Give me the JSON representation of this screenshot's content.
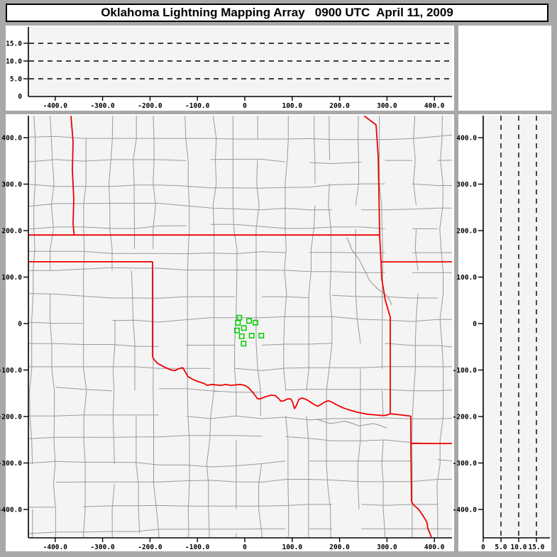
{
  "window_title": "Oklahoma Lightning Mapping Array   0900 UTC  April 11, 2009",
  "colors": {
    "frame": "#a8a8a8",
    "panel_bg": "#ffffff",
    "plot_bg": "#f4f4f4",
    "county_line": "#9a9a9a",
    "state_border": "#ee0000",
    "river": "#9a9a9a",
    "station": "#00cc00",
    "axis": "#000000",
    "gridline": "#000000",
    "title_text": "#000000"
  },
  "chart_data": [
    {
      "id": "alt_ew",
      "type": "scatter",
      "role": "altitude-vs-east-west-distance",
      "xlim": [
        -456,
        437
      ],
      "ylim": [
        0,
        20
      ],
      "x_tick_values": [
        -400,
        -300,
        -200,
        -100,
        0,
        100,
        200,
        300,
        400
      ],
      "x_tick_labels": [
        "-400.0",
        "-300.0",
        "-200.0",
        "-100.0",
        "0",
        "100.0",
        "200.0",
        "300.0",
        "400.0"
      ],
      "y_gridlines": [
        5,
        10,
        15
      ],
      "y_tick_values": [
        5,
        10,
        15
      ],
      "y_tick_labels": [
        "5.0",
        "10.0",
        "15.0"
      ],
      "y_zero_label": "0",
      "grid_style": "dashed",
      "points": []
    },
    {
      "id": "map",
      "type": "scatter",
      "role": "plan-view-map",
      "xlim": [
        -456,
        437
      ],
      "ylim": [
        -459,
        447
      ],
      "x_tick_values": [
        -400,
        -300,
        -200,
        -100,
        0,
        100,
        200,
        300,
        400
      ],
      "x_tick_labels": [
        "-400.0",
        "-300.0",
        "-200.0",
        "-100.0",
        "0",
        "100.0",
        "200.0",
        "300.0",
        "400.0"
      ],
      "y_tick_values": [
        -400,
        -300,
        -200,
        -100,
        0,
        100,
        200,
        300,
        400
      ],
      "y_tick_labels": [
        "-400.0",
        "-300.0",
        "-200.0",
        "-100.0",
        "0",
        "100.0",
        "200.0",
        "300.0",
        "400.0"
      ],
      "stations_km": [
        [
          -11.5,
          12.7
        ],
        [
          -14.5,
          1.5
        ],
        [
          9.0,
          5.6
        ],
        [
          22.4,
          2.0
        ],
        [
          -16.5,
          -14.8
        ],
        [
          -1.9,
          -9.6
        ],
        [
          -6.4,
          -27.5
        ],
        [
          14.5,
          -26.0
        ],
        [
          34.9,
          -26.0
        ],
        [
          -2.5,
          -43.2
        ]
      ],
      "state_borders": [
        {
          "name": "colorado-kansas-102w",
          "pts": [
            [
              -366.7,
              447
            ],
            [
              -362.3,
              391
            ],
            [
              -363.8,
              330
            ],
            [
              -360.8,
              268
            ],
            [
              -362.3,
              215
            ],
            [
              -360.0,
              190.5
            ]
          ]
        },
        {
          "name": "kansas-oklahoma-37n",
          "pts": [
            [
              -456.6,
              190.5
            ],
            [
              284.4,
              190.5
            ]
          ]
        },
        {
          "name": "texas-panhandle-36-5n",
          "pts": [
            [
              -456.6,
              133
            ],
            [
              -194.6,
              133
            ]
          ]
        },
        {
          "name": "texas-oklahoma-100w",
          "pts": [
            [
              -194.6,
              133
            ],
            [
              -194.6,
              -71.8
            ]
          ]
        },
        {
          "name": "red-river",
          "pts": [
            [
              -194.6,
              -71.8
            ],
            [
              -191,
              -78
            ],
            [
              -184,
              -85.5
            ],
            [
              -176,
              -90
            ],
            [
              -169,
              -94
            ],
            [
              -162,
              -97
            ],
            [
              -155,
              -100
            ],
            [
              -147,
              -101
            ],
            [
              -139,
              -97
            ],
            [
              -131,
              -95
            ],
            [
              -126,
              -103
            ],
            [
              -120,
              -114
            ],
            [
              -112,
              -119
            ],
            [
              -103,
              -123
            ],
            [
              -95,
              -126
            ],
            [
              -86,
              -129
            ],
            [
              -79,
              -133
            ],
            [
              -70,
              -131
            ],
            [
              -60,
              -132
            ],
            [
              -50,
              -133
            ],
            [
              -40,
              -131
            ],
            [
              -30,
              -133
            ],
            [
              -20,
              -132
            ],
            [
              -10,
              -131
            ],
            [
              0,
              -133
            ],
            [
              8,
              -138
            ],
            [
              15,
              -146
            ],
            [
              22,
              -155
            ],
            [
              27,
              -162
            ],
            [
              33,
              -162
            ],
            [
              40,
              -159
            ],
            [
              48,
              -156
            ],
            [
              56,
              -154
            ],
            [
              64,
              -155
            ],
            [
              70,
              -160
            ],
            [
              76,
              -167
            ],
            [
              83,
              -166
            ],
            [
              90,
              -162
            ],
            [
              97,
              -162
            ],
            [
              101,
              -170
            ],
            [
              105,
              -183
            ],
            [
              109,
              -176
            ],
            [
              114,
              -163
            ],
            [
              121,
              -160
            ],
            [
              129,
              -163
            ],
            [
              137,
              -168
            ],
            [
              146,
              -174
            ],
            [
              154,
              -178
            ],
            [
              161,
              -174
            ],
            [
              168,
              -169
            ],
            [
              176,
              -166
            ],
            [
              184,
              -169
            ],
            [
              192,
              -174
            ],
            [
              200,
              -178
            ],
            [
              209,
              -182
            ],
            [
              218,
              -185
            ],
            [
              228,
              -188
            ],
            [
              238,
              -191
            ],
            [
              248,
              -193
            ],
            [
              258,
              -195
            ],
            [
              269,
              -196
            ],
            [
              280,
              -197
            ],
            [
              291,
              -198
            ],
            [
              300,
              -197
            ],
            [
              307,
              -194
            ],
            [
              315,
              -195
            ],
            [
              324,
              -196
            ],
            [
              333,
              -197
            ],
            [
              340,
              -198
            ],
            [
              347,
              -198.5
            ]
          ]
        },
        {
          "name": "kansas-missouri-94-6w",
          "pts": [
            [
              251.5,
              447
            ],
            [
              276.9,
              427.5
            ],
            [
              281.4,
              360.3
            ],
            [
              282.9,
              284
            ],
            [
              284.4,
              190.8
            ]
          ]
        },
        {
          "name": "oklahoma-missouri-arkansas-east",
          "pts": [
            [
              284.4,
              190.8
            ],
            [
              287.4,
              132.8
            ],
            [
              288.9,
              96.2
            ],
            [
              296.4,
              50.4
            ],
            [
              306.9,
              13.7
            ],
            [
              306.9,
              -67.2
            ],
            [
              306.9,
              -130
            ],
            [
              306.9,
              -193.9
            ]
          ]
        },
        {
          "name": "missouri-arkansas-36-5n",
          "pts": [
            [
              287.4,
              132.8
            ],
            [
              437,
              132.8
            ]
          ]
        },
        {
          "name": "arkansas-texas",
          "pts": [
            [
              347,
              -198.5
            ],
            [
              350.3,
              -200
            ],
            [
              350.3,
              -258
            ]
          ]
        },
        {
          "name": "arkansas-louisiana-33n",
          "pts": [
            [
              350.3,
              -258
            ],
            [
              437,
              -258
            ]
          ]
        },
        {
          "name": "texas-louisiana",
          "pts": [
            [
              350.3,
              -258
            ],
            [
              351.8,
              -383.2
            ],
            [
              356,
              -390
            ],
            [
              366.8,
              -400
            ],
            [
              374.3,
              -410.7
            ],
            [
              380,
              -420
            ],
            [
              384.7,
              -429
            ],
            [
              386,
              -440
            ],
            [
              393.7,
              -459.5
            ]
          ]
        }
      ],
      "rivers": [
        [
          [
            215,
            185
          ],
          [
            222,
            170
          ],
          [
            225,
            160
          ],
          [
            233,
            149
          ],
          [
            240,
            140
          ],
          [
            250,
            120
          ],
          [
            256,
            108
          ],
          [
            262,
            95
          ],
          [
            271,
            84
          ],
          [
            280,
            75
          ],
          [
            290,
            67
          ],
          [
            300,
            60
          ],
          [
            306,
            50
          ],
          [
            310,
            40
          ]
        ],
        [
          [
            150,
            -205
          ],
          [
            165,
            -210
          ],
          [
            180,
            -215
          ],
          [
            195,
            -213
          ],
          [
            210,
            -210
          ],
          [
            225,
            -214
          ],
          [
            240,
            -220
          ],
          [
            255,
            -218
          ],
          [
            270,
            -215
          ],
          [
            285,
            -219
          ],
          [
            300,
            -225
          ]
        ]
      ],
      "points": []
    },
    {
      "id": "alt_ns",
      "type": "scatter",
      "role": "altitude-vs-north-south-distance",
      "xlim": [
        0,
        18.8
      ],
      "ylim": [
        -459,
        447
      ],
      "x_gridlines": [
        5,
        10,
        15
      ],
      "x_tick_values": [
        0,
        5,
        10,
        15
      ],
      "x_tick_labels": [
        "0",
        "5.0",
        "10.0",
        "15.0"
      ],
      "y_tick_values": [
        -400,
        -300,
        -200,
        -100,
        0,
        100,
        200,
        300,
        400
      ],
      "y_tick_labels": [
        "-400.0",
        "-300.0",
        "-200.0",
        "-100.0",
        "0",
        "100.0",
        "200.0",
        "300.0",
        "400.0"
      ],
      "grid_style": "dashed",
      "points": []
    }
  ]
}
